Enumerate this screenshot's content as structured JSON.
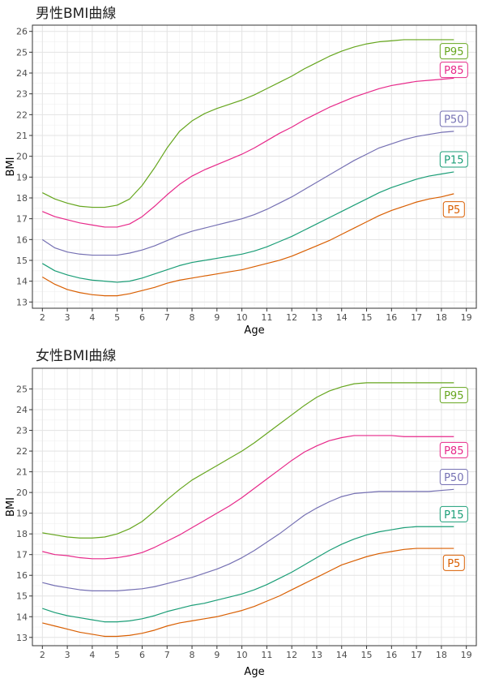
{
  "chart_data": [
    {
      "type": "line",
      "title": "男性BMI曲線",
      "xlabel": "Age",
      "ylabel": "BMI",
      "xlim": [
        1.6,
        19.4
      ],
      "ylim": [
        12.7,
        26.3
      ],
      "x_ticks": [
        2,
        3,
        4,
        5,
        6,
        7,
        8,
        9,
        10,
        11,
        12,
        13,
        14,
        15,
        16,
        17,
        18,
        19
      ],
      "y_ticks": [
        13,
        14,
        15,
        16,
        17,
        18,
        19,
        20,
        21,
        22,
        23,
        24,
        25,
        26
      ],
      "grid": true,
      "x": [
        2,
        2.5,
        3,
        3.5,
        4,
        4.5,
        5,
        5.5,
        6,
        6.5,
        7,
        7.5,
        8,
        8.5,
        9,
        9.5,
        10,
        10.5,
        11,
        11.5,
        12,
        12.5,
        13,
        13.5,
        14,
        14.5,
        15,
        15.5,
        16,
        16.5,
        17,
        17.5,
        18,
        18.5
      ],
      "series": [
        {
          "name": "P5",
          "color": "#d95f02",
          "values": [
            14.2,
            13.85,
            13.6,
            13.45,
            13.35,
            13.3,
            13.3,
            13.4,
            13.55,
            13.7,
            13.9,
            14.05,
            14.15,
            14.25,
            14.35,
            14.45,
            14.55,
            14.7,
            14.85,
            15.0,
            15.2,
            15.45,
            15.7,
            15.95,
            16.25,
            16.55,
            16.85,
            17.15,
            17.4,
            17.6,
            17.8,
            17.95,
            18.05,
            18.2
          ]
        },
        {
          "name": "P15",
          "color": "#1b9e77",
          "values": [
            14.85,
            14.5,
            14.3,
            14.15,
            14.05,
            14.0,
            13.95,
            14.0,
            14.15,
            14.35,
            14.55,
            14.75,
            14.9,
            15.0,
            15.1,
            15.2,
            15.3,
            15.45,
            15.65,
            15.9,
            16.15,
            16.45,
            16.75,
            17.05,
            17.35,
            17.65,
            17.95,
            18.25,
            18.5,
            18.7,
            18.9,
            19.05,
            19.15,
            19.25
          ]
        },
        {
          "name": "P50",
          "color": "#7570b3",
          "values": [
            16.0,
            15.6,
            15.4,
            15.3,
            15.25,
            15.25,
            15.25,
            15.35,
            15.5,
            15.7,
            15.95,
            16.2,
            16.4,
            16.55,
            16.7,
            16.85,
            17.0,
            17.2,
            17.45,
            17.75,
            18.05,
            18.4,
            18.75,
            19.1,
            19.45,
            19.8,
            20.1,
            20.4,
            20.6,
            20.8,
            20.95,
            21.05,
            21.15,
            21.2
          ]
        },
        {
          "name": "P85",
          "color": "#e7298a",
          "values": [
            17.35,
            17.1,
            16.95,
            16.8,
            16.7,
            16.6,
            16.6,
            16.75,
            17.1,
            17.6,
            18.15,
            18.65,
            19.05,
            19.35,
            19.6,
            19.85,
            20.1,
            20.4,
            20.75,
            21.1,
            21.4,
            21.75,
            22.05,
            22.35,
            22.6,
            22.85,
            23.05,
            23.25,
            23.4,
            23.5,
            23.6,
            23.65,
            23.7,
            23.75
          ]
        },
        {
          "name": "P95",
          "color": "#66a61e",
          "values": [
            18.25,
            17.95,
            17.75,
            17.6,
            17.55,
            17.55,
            17.65,
            17.95,
            18.6,
            19.45,
            20.4,
            21.2,
            21.7,
            22.05,
            22.3,
            22.5,
            22.7,
            22.95,
            23.25,
            23.55,
            23.85,
            24.2,
            24.5,
            24.8,
            25.05,
            25.25,
            25.4,
            25.5,
            25.55,
            25.6,
            25.6,
            25.6,
            25.6,
            25.6
          ]
        }
      ],
      "end_labels": [
        {
          "text": "P95",
          "color": "#66a61e",
          "y": 25.05
        },
        {
          "text": "P85",
          "color": "#e7298a",
          "y": 24.15
        },
        {
          "text": "P50",
          "color": "#7570b3",
          "y": 21.8
        },
        {
          "text": "P15",
          "color": "#1b9e77",
          "y": 19.85
        },
        {
          "text": "P5",
          "color": "#d95f02",
          "y": 17.45
        }
      ]
    },
    {
      "type": "line",
      "title": "女性BMI曲線",
      "xlabel": "Age",
      "ylabel": "BMI",
      "xlim": [
        1.6,
        19.4
      ],
      "ylim": [
        12.6,
        26.0
      ],
      "x_ticks": [
        2,
        3,
        4,
        5,
        6,
        7,
        8,
        9,
        10,
        11,
        12,
        13,
        14,
        15,
        16,
        17,
        18,
        19
      ],
      "y_ticks": [
        13,
        14,
        15,
        16,
        17,
        18,
        19,
        20,
        21,
        22,
        23,
        24,
        25
      ],
      "grid": true,
      "x": [
        2,
        2.5,
        3,
        3.5,
        4,
        4.5,
        5,
        5.5,
        6,
        6.5,
        7,
        7.5,
        8,
        8.5,
        9,
        9.5,
        10,
        10.5,
        11,
        11.5,
        12,
        12.5,
        13,
        13.5,
        14,
        14.5,
        15,
        15.5,
        16,
        16.5,
        17,
        17.5,
        18,
        18.5
      ],
      "series": [
        {
          "name": "P5",
          "color": "#d95f02",
          "values": [
            13.7,
            13.55,
            13.4,
            13.25,
            13.15,
            13.05,
            13.05,
            13.1,
            13.2,
            13.35,
            13.55,
            13.7,
            13.8,
            13.9,
            14.0,
            14.15,
            14.3,
            14.5,
            14.75,
            15.0,
            15.3,
            15.6,
            15.9,
            16.2,
            16.5,
            16.7,
            16.9,
            17.05,
            17.15,
            17.25,
            17.3,
            17.3,
            17.3,
            17.3
          ]
        },
        {
          "name": "P15",
          "color": "#1b9e77",
          "values": [
            14.4,
            14.2,
            14.05,
            13.95,
            13.85,
            13.75,
            13.75,
            13.8,
            13.9,
            14.05,
            14.25,
            14.4,
            14.55,
            14.65,
            14.8,
            14.95,
            15.1,
            15.3,
            15.55,
            15.85,
            16.15,
            16.5,
            16.85,
            17.2,
            17.5,
            17.75,
            17.95,
            18.1,
            18.2,
            18.3,
            18.35,
            18.35,
            18.35,
            18.35
          ]
        },
        {
          "name": "P50",
          "color": "#7570b3",
          "values": [
            15.65,
            15.5,
            15.4,
            15.3,
            15.25,
            15.25,
            15.25,
            15.3,
            15.35,
            15.45,
            15.6,
            15.75,
            15.9,
            16.1,
            16.3,
            16.55,
            16.85,
            17.2,
            17.6,
            18.0,
            18.45,
            18.9,
            19.25,
            19.55,
            19.8,
            19.95,
            20.0,
            20.05,
            20.05,
            20.05,
            20.05,
            20.05,
            20.1,
            20.15
          ]
        },
        {
          "name": "P85",
          "color": "#e7298a",
          "values": [
            17.15,
            17.0,
            16.95,
            16.85,
            16.8,
            16.8,
            16.85,
            16.95,
            17.1,
            17.35,
            17.65,
            17.95,
            18.3,
            18.65,
            19.0,
            19.35,
            19.75,
            20.2,
            20.65,
            21.1,
            21.55,
            21.95,
            22.25,
            22.5,
            22.65,
            22.75,
            22.75,
            22.75,
            22.75,
            22.7,
            22.7,
            22.7,
            22.7,
            22.7
          ]
        },
        {
          "name": "P95",
          "color": "#66a61e",
          "values": [
            18.05,
            17.95,
            17.85,
            17.8,
            17.8,
            17.85,
            18.0,
            18.25,
            18.6,
            19.1,
            19.65,
            20.15,
            20.6,
            20.95,
            21.3,
            21.65,
            22.0,
            22.4,
            22.85,
            23.3,
            23.75,
            24.2,
            24.6,
            24.9,
            25.1,
            25.25,
            25.3,
            25.3,
            25.3,
            25.3,
            25.3,
            25.3,
            25.3,
            25.3
          ]
        }
      ],
      "end_labels": [
        {
          "text": "P95",
          "color": "#66a61e",
          "y": 24.7
        },
        {
          "text": "P85",
          "color": "#e7298a",
          "y": 22.05
        },
        {
          "text": "P50",
          "color": "#7570b3",
          "y": 20.75
        },
        {
          "text": "P15",
          "color": "#1b9e77",
          "y": 18.95
        },
        {
          "text": "P5",
          "color": "#d95f02",
          "y": 16.6
        }
      ]
    }
  ]
}
